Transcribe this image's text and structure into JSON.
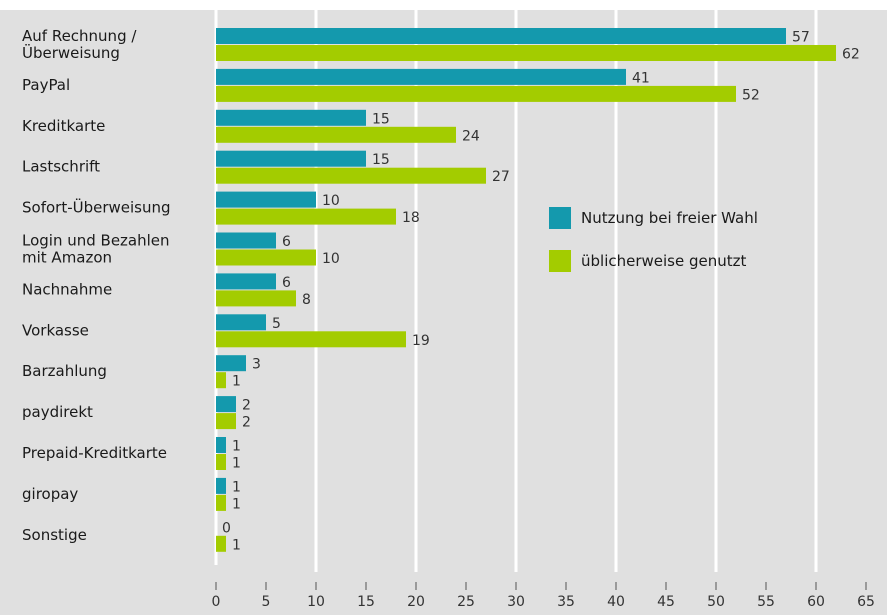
{
  "chart_data": {
    "type": "bar",
    "orientation": "horizontal",
    "categories": [
      [
        "Auf Rechnung /",
        "Überweisung"
      ],
      [
        "PayPal"
      ],
      [
        "Kreditkarte"
      ],
      [
        "Lastschrift"
      ],
      [
        "Sofort-Überweisung"
      ],
      [
        "Login und Bezahlen",
        "mit Amazon"
      ],
      [
        "Nachnahme"
      ],
      [
        "Vorkasse"
      ],
      [
        "Barzahlung"
      ],
      [
        "paydirekt"
      ],
      [
        "Prepaid-Kreditkarte"
      ],
      [
        "giropay"
      ],
      [
        "Sonstige"
      ]
    ],
    "series": [
      {
        "name": "Nutzung bei freier Wahl",
        "color": "#1499ad",
        "values": [
          57,
          41,
          15,
          15,
          10,
          6,
          6,
          5,
          3,
          2,
          1,
          1,
          0
        ]
      },
      {
        "name": "üblicherweise genutzt",
        "color": "#a3cc00",
        "values": [
          62,
          52,
          24,
          27,
          18,
          10,
          8,
          19,
          1,
          2,
          1,
          1,
          1
        ]
      }
    ],
    "xlim": [
      0,
      65
    ],
    "xticks": [
      0,
      5,
      10,
      15,
      20,
      25,
      30,
      35,
      40,
      45,
      50,
      55,
      60,
      65
    ],
    "grid": true,
    "legend_position": "right-center",
    "background": "#e0e0e0",
    "gridline_color": "#ffffff"
  }
}
